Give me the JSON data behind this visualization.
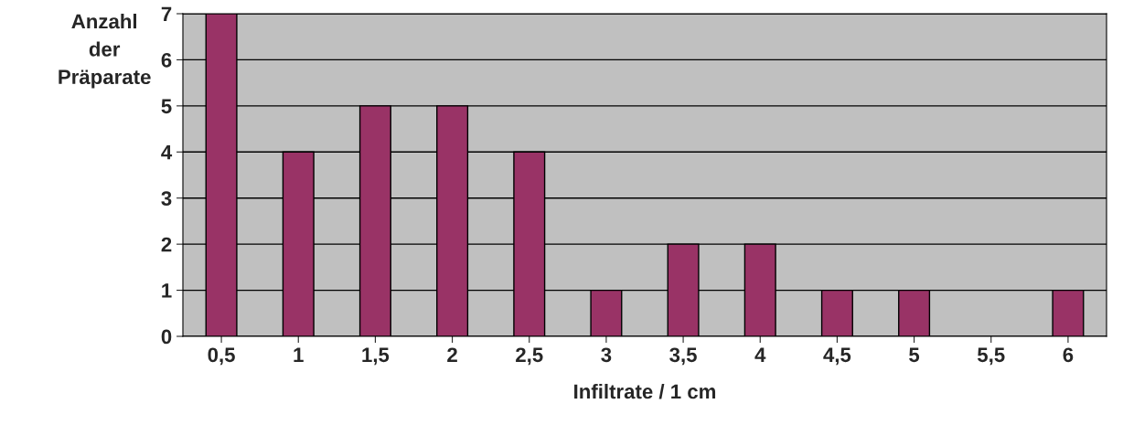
{
  "chart_data": {
    "type": "bar",
    "xlabel": "Infiltrate / 1 cm",
    "ylabel": "Anzahl\nder\nPräparate",
    "categories": [
      "0,5",
      "1",
      "1,5",
      "2",
      "2,5",
      "3",
      "3,5",
      "4",
      "4,5",
      "5",
      "5,5",
      "6"
    ],
    "values": [
      7,
      4,
      5,
      5,
      4,
      1,
      2,
      2,
      1,
      1,
      null,
      1
    ],
    "color": "#993366",
    "ylim": [
      0,
      7
    ],
    "yticks": [
      0,
      1,
      2,
      3,
      4,
      5,
      6,
      7
    ],
    "grid": "y"
  }
}
